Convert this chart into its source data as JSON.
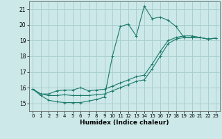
{
  "xlabel": "Humidex (Indice chaleur)",
  "xlim": [
    -0.5,
    23.5
  ],
  "ylim": [
    14.5,
    21.5
  ],
  "yticks": [
    15,
    16,
    17,
    18,
    19,
    20,
    21
  ],
  "xticks": [
    0,
    1,
    2,
    3,
    4,
    5,
    6,
    7,
    8,
    9,
    10,
    11,
    12,
    13,
    14,
    15,
    16,
    17,
    18,
    19,
    20,
    21,
    22,
    23
  ],
  "bg_color": "#cce8e8",
  "grid_color": "#aacfcf",
  "line_color": "#1a7a6a",
  "lines": [
    {
      "x": [
        0,
        1,
        2,
        3,
        4,
        5,
        6,
        7,
        8,
        9,
        10,
        11,
        12,
        13,
        14,
        15,
        16,
        17,
        18,
        19,
        20,
        21,
        22,
        23
      ],
      "y": [
        15.9,
        15.5,
        15.2,
        15.1,
        15.05,
        15.05,
        15.05,
        15.15,
        15.25,
        15.4,
        18.0,
        19.9,
        20.05,
        19.3,
        21.2,
        20.4,
        20.5,
        20.3,
        19.9,
        19.2,
        19.2,
        19.2,
        19.1,
        19.15
      ]
    },
    {
      "x": [
        0,
        1,
        2,
        3,
        4,
        5,
        6,
        7,
        8,
        9,
        10,
        11,
        12,
        13,
        14,
        15,
        16,
        17,
        18,
        19,
        20,
        21,
        22,
        23
      ],
      "y": [
        15.9,
        15.6,
        15.6,
        15.8,
        15.85,
        15.85,
        16.0,
        15.8,
        15.85,
        15.9,
        16.1,
        16.3,
        16.5,
        16.7,
        16.8,
        17.5,
        18.3,
        19.0,
        19.2,
        19.3,
        19.3,
        19.2,
        19.1,
        19.15
      ]
    },
    {
      "x": [
        0,
        1,
        2,
        3,
        4,
        5,
        6,
        7,
        8,
        9,
        10,
        11,
        12,
        13,
        14,
        15,
        16,
        17,
        18,
        19,
        20,
        21,
        22,
        23
      ],
      "y": [
        15.9,
        15.6,
        15.5,
        15.5,
        15.55,
        15.5,
        15.5,
        15.5,
        15.55,
        15.6,
        15.8,
        16.0,
        16.2,
        16.4,
        16.5,
        17.2,
        18.0,
        18.8,
        19.1,
        19.2,
        19.2,
        19.2,
        19.1,
        19.15
      ]
    }
  ]
}
